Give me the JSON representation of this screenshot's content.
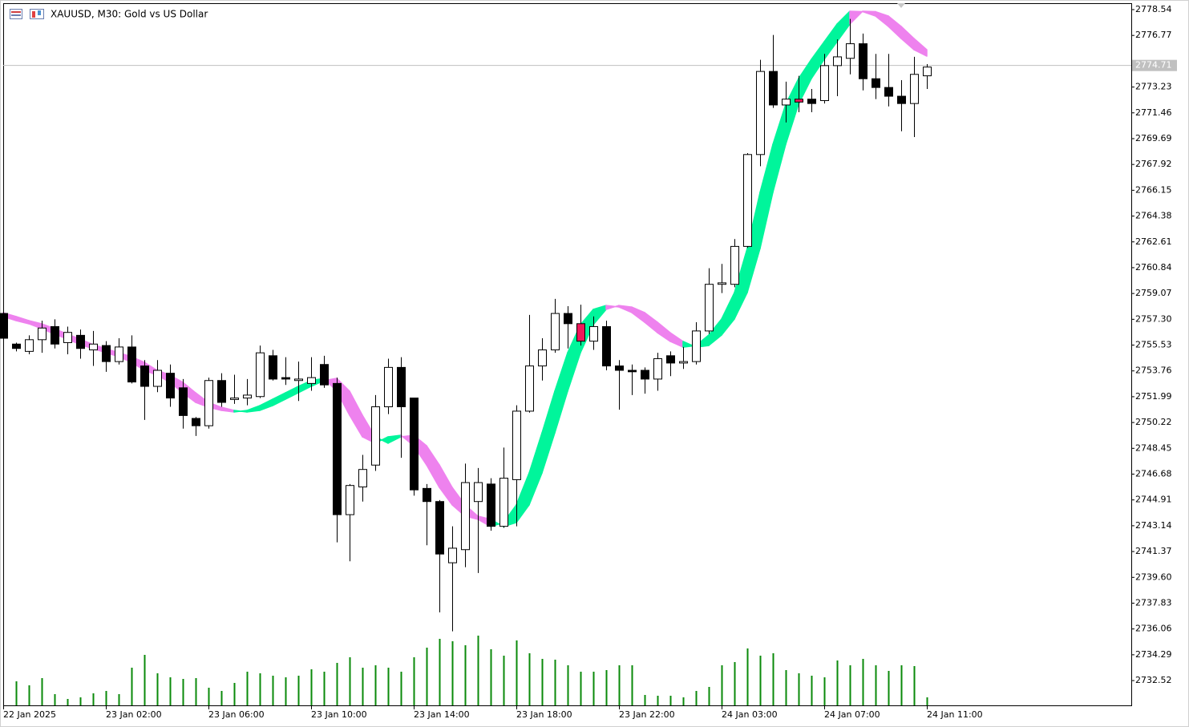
{
  "chart_data": {
    "type": "candlestick",
    "title": "XAUUSD, M30:  Gold vs US Dollar",
    "categories": [
      "22 Jan 2025",
      null,
      null,
      null,
      null,
      null,
      null,
      null,
      "23 Jan 02:00",
      null,
      null,
      null,
      null,
      null,
      null,
      null,
      "23 Jan 06:00",
      null,
      null,
      null,
      null,
      null,
      null,
      null,
      "23 Jan 10:00",
      null,
      null,
      null,
      null,
      null,
      null,
      null,
      "23 Jan 14:00",
      null,
      null,
      null,
      null,
      null,
      null,
      null,
      "23 Jan 18:00",
      null,
      null,
      null,
      null,
      null,
      null,
      null,
      "23 Jan 22:00",
      null,
      null,
      null,
      null,
      null,
      null,
      null,
      "24 Jan 03:00",
      null,
      null,
      null,
      null,
      null,
      null,
      null,
      "24 Jan 07:00",
      null,
      null,
      null,
      null,
      null,
      null,
      null,
      "24 Jan 11:00"
    ],
    "open": [
      2757.7,
      2755.6,
      2755.1,
      2755.9,
      2756.8,
      2755.7,
      2756.2,
      2755.2,
      2755.5,
      2754.4,
      2755.4,
      2754.1,
      2752.7,
      2753.6,
      2752.6,
      2750.5,
      2750.0,
      2753.1,
      2751.8,
      2751.9,
      2752.0,
      2754.8,
      2753.3,
      2753.1,
      2752.9,
      2754.2,
      2752.9,
      2743.9,
      2745.8,
      2747.3,
      2751.3,
      2754.0,
      2751.9,
      2745.7,
      2744.8,
      2740.6,
      2741.5,
      2744.8,
      2746.0,
      2743.1,
      2746.3,
      2751.0,
      2754.1,
      2755.2,
      2757.7,
      2757.0,
      2755.8,
      2756.8,
      2754.1,
      2753.8,
      2753.8,
      2753.2,
      2754.8,
      2754.3,
      2754.4,
      2756.5,
      2759.7,
      2759.7,
      2762.3,
      2768.6,
      2774.3,
      2772.0,
      2772.4,
      2772.4,
      2772.3,
      2774.7,
      2775.2,
      2776.2,
      2773.8,
      2773.2,
      2772.6,
      2772.1,
      2774.0
    ],
    "high": [
      2757.8,
      2755.7,
      2756.2,
      2757.2,
      2757.3,
      2756.8,
      2756.6,
      2756.5,
      2755.8,
      2756.0,
      2756.2,
      2754.5,
      2754.5,
      2754.2,
      2753.2,
      2750.6,
      2753.3,
      2753.6,
      2753.5,
      2753.2,
      2755.5,
      2755.2,
      2754.7,
      2754.4,
      2754.7,
      2754.8,
      2753.3,
      2746.0,
      2748.0,
      2752.1,
      2754.6,
      2754.7,
      2751.9,
      2746.0,
      2744.9,
      2743.1,
      2747.4,
      2747.1,
      2746.4,
      2748.5,
      2751.4,
      2757.6,
      2756.0,
      2758.7,
      2758.2,
      2758.3,
      2757.5,
      2757.2,
      2754.5,
      2754.2,
      2754.0,
      2755.0,
      2755.1,
      2755.4,
      2757.1,
      2760.8,
      2761.1,
      2762.8,
      2768.7,
      2775.1,
      2776.8,
      2773.6,
      2774.0,
      2773.1,
      2775.5,
      2776.5,
      2777.9,
      2776.9,
      2775.5,
      2775.5,
      2773.7,
      2775.3,
      2774.8
    ],
    "low": [
      2755.6,
      2755.1,
      2754.9,
      2755.0,
      2755.3,
      2754.9,
      2754.6,
      2754.1,
      2753.7,
      2754.2,
      2752.9,
      2750.4,
      2752.3,
      2751.3,
      2749.8,
      2749.3,
      2749.8,
      2751.3,
      2751.5,
      2751.4,
      2751.9,
      2753.1,
      2752.8,
      2751.7,
      2752.4,
      2752.6,
      2742.0,
      2740.7,
      2744.8,
      2746.9,
      2750.8,
      2747.8,
      2745.2,
      2741.8,
      2737.2,
      2735.9,
      2740.3,
      2739.9,
      2742.8,
      2743.0,
      2743.1,
      2750.9,
      2753.1,
      2755.0,
      2755.3,
      2755.5,
      2755.2,
      2753.8,
      2751.1,
      2752.1,
      2752.2,
      2752.4,
      2753.4,
      2753.9,
      2754.2,
      2756.3,
      2759.1,
      2759.5,
      2762.2,
      2767.8,
      2771.8,
      2770.8,
      2771.5,
      2771.5,
      2772.1,
      2772.6,
      2774.1,
      2773.0,
      2772.4,
      2771.9,
      2770.2,
      2769.8,
      2773.1
    ],
    "close": [
      2756.0,
      2755.3,
      2755.9,
      2756.7,
      2755.6,
      2756.4,
      2755.3,
      2755.6,
      2754.4,
      2755.4,
      2753.0,
      2752.7,
      2753.8,
      2751.9,
      2750.7,
      2750.0,
      2753.1,
      2751.6,
      2751.9,
      2752.1,
      2755.0,
      2753.2,
      2753.2,
      2753.2,
      2753.3,
      2752.8,
      2743.9,
      2745.9,
      2747.0,
      2751.3,
      2754.0,
      2751.3,
      2745.6,
      2744.8,
      2741.2,
      2741.6,
      2746.1,
      2746.1,
      2743.1,
      2746.4,
      2751.0,
      2754.1,
      2755.2,
      2757.7,
      2757.0,
      2755.8,
      2756.8,
      2754.1,
      2753.8,
      2753.7,
      2753.2,
      2754.6,
      2754.3,
      2754.4,
      2756.5,
      2759.7,
      2759.8,
      2762.3,
      2768.6,
      2774.3,
      2772.0,
      2772.4,
      2772.2,
      2772.1,
      2774.7,
      2775.3,
      2776.2,
      2773.8,
      2773.2,
      2772.6,
      2772.1,
      2774.1,
      2774.6
    ],
    "volume": [
      null,
      30,
      25,
      34,
      14,
      8,
      10,
      15,
      18,
      14,
      47,
      63,
      40,
      35,
      33,
      34,
      22,
      18,
      28,
      42,
      40,
      37,
      35,
      37,
      45,
      42,
      53,
      60,
      47,
      50,
      47,
      42,
      60,
      72,
      83,
      80,
      75,
      87,
      70,
      62,
      81,
      65,
      58,
      57,
      50,
      42,
      42,
      44,
      50,
      50,
      13,
      12,
      12,
      10,
      18,
      23,
      50,
      54,
      71,
      62,
      65,
      44,
      40,
      37,
      35,
      56,
      50,
      58,
      50,
      43,
      50,
      49,
      10
    ],
    "ribbon_fast": [
      2757.49,
      2757.21,
      2756.99,
      2756.66,
      2756.28,
      2755.95,
      2755.56,
      2755.29,
      2755.01,
      2754.74,
      2754.35,
      2753.8,
      2753.47,
      2752.98,
      2752.26,
      2751.6,
      2751.27,
      2751.05,
      2750.94,
      2751.05,
      2751.38,
      2751.82,
      2752.26,
      2752.7,
      2753.09,
      2753.25,
      2752.37,
      2750.72,
      2749.24,
      2748.8,
      2749.24,
      2749.35,
      2748.63,
      2747.31,
      2745.77,
      2744.57,
      2743.8,
      2743.58,
      2743.08,
      2743.36,
      2744.57,
      2746.76,
      2749.51,
      2752.37,
      2755.01,
      2756.93,
      2757.98,
      2758.25,
      2758.14,
      2757.76,
      2757.1,
      2756.38,
      2755.78,
      2755.39,
      2755.5,
      2756.22,
      2757.32,
      2759.13,
      2762.16,
      2766.01,
      2769.3,
      2772.05,
      2773.81,
      2775.13,
      2776.34,
      2777.55,
      2778.43,
      2778.4,
      2778.1,
      2777.39,
      2776.56,
      2775.79,
      2775.35
    ],
    "ribbon_slow": [
      2757.75,
      2757.49,
      2757.21,
      2756.99,
      2756.66,
      2756.28,
      2755.95,
      2755.56,
      2755.29,
      2755.01,
      2754.74,
      2754.35,
      2753.8,
      2753.47,
      2752.98,
      2752.26,
      2751.6,
      2751.27,
      2751.05,
      2750.94,
      2751.05,
      2751.38,
      2751.82,
      2752.26,
      2752.7,
      2753.09,
      2753.25,
      2752.37,
      2750.72,
      2749.24,
      2748.8,
      2749.24,
      2749.35,
      2748.63,
      2747.31,
      2745.77,
      2744.57,
      2743.8,
      2743.58,
      2743.08,
      2743.36,
      2744.57,
      2746.76,
      2749.51,
      2752.37,
      2755.01,
      2756.93,
      2757.98,
      2758.25,
      2758.14,
      2757.76,
      2757.1,
      2756.38,
      2755.78,
      2755.39,
      2755.5,
      2756.22,
      2757.32,
      2759.13,
      2762.16,
      2766.01,
      2769.3,
      2772.05,
      2773.81,
      2775.13,
      2776.34,
      2777.55,
      2778.43,
      2778.4,
      2778.1,
      2777.39,
      2776.56,
      2775.79
    ],
    "ribbon_up_color": "#00f59b",
    "ribbon_down_color": "#ee82ee",
    "up_color": "#ffffff",
    "down_color": "#000000",
    "outline_color": "#000000",
    "volume_color": "#0a8a0a",
    "highlighted": [
      45,
      62
    ],
    "highlight_color": "#f0185a",
    "current_price": 2774.71,
    "ylim": [
      2730.82,
      2778.98
    ],
    "yticks": [
      2778.54,
      2776.77,
      2773.23,
      2771.46,
      2769.69,
      2767.92,
      2766.15,
      2764.38,
      2762.61,
      2760.84,
      2759.07,
      {
        "value": 2757.3,
        "label": "2757.30"
      },
      2755.53,
      2753.76,
      2751.99,
      2750.22,
      2748.45,
      2746.68,
      2744.91,
      2743.14,
      2741.37,
      {
        "value": 2739.6,
        "label": "2739.60"
      },
      2737.83,
      2736.06,
      2734.29,
      2732.52
    ]
  }
}
